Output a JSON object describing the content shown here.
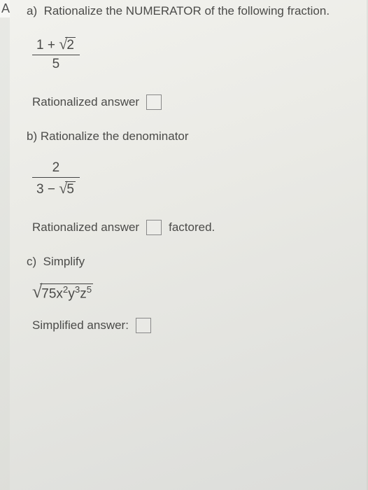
{
  "edge_marker": "A",
  "part_a": {
    "label": "a)",
    "prompt": "Rationalize the NUMERATOR of the following fraction.",
    "fraction": {
      "numerator_prefix": "1 + ",
      "numerator_radicand": "2",
      "denominator": "5"
    },
    "answer_label": "Rationalized answer"
  },
  "part_b": {
    "label": "b)",
    "prompt": "Rationalize the denominator",
    "fraction": {
      "numerator": "2",
      "denominator_prefix": "3 − ",
      "denominator_radicand": "5"
    },
    "answer_label": "Rationalized answer",
    "answer_suffix": "factored."
  },
  "part_c": {
    "label": "c)",
    "prompt": "Simplify",
    "expression": {
      "coeff": "75",
      "t1_base": "x",
      "t1_exp": "2",
      "t2_base": "y",
      "t2_exp": "3",
      "t3_base": "z",
      "t3_exp": "5"
    },
    "answer_label": "Simplified answer:"
  },
  "colors": {
    "text": "#4a4a48",
    "rule": "#444444",
    "box_border": "#888888",
    "page_bg_top": "#f2f2ee",
    "page_bg_bottom": "#dcddda"
  }
}
